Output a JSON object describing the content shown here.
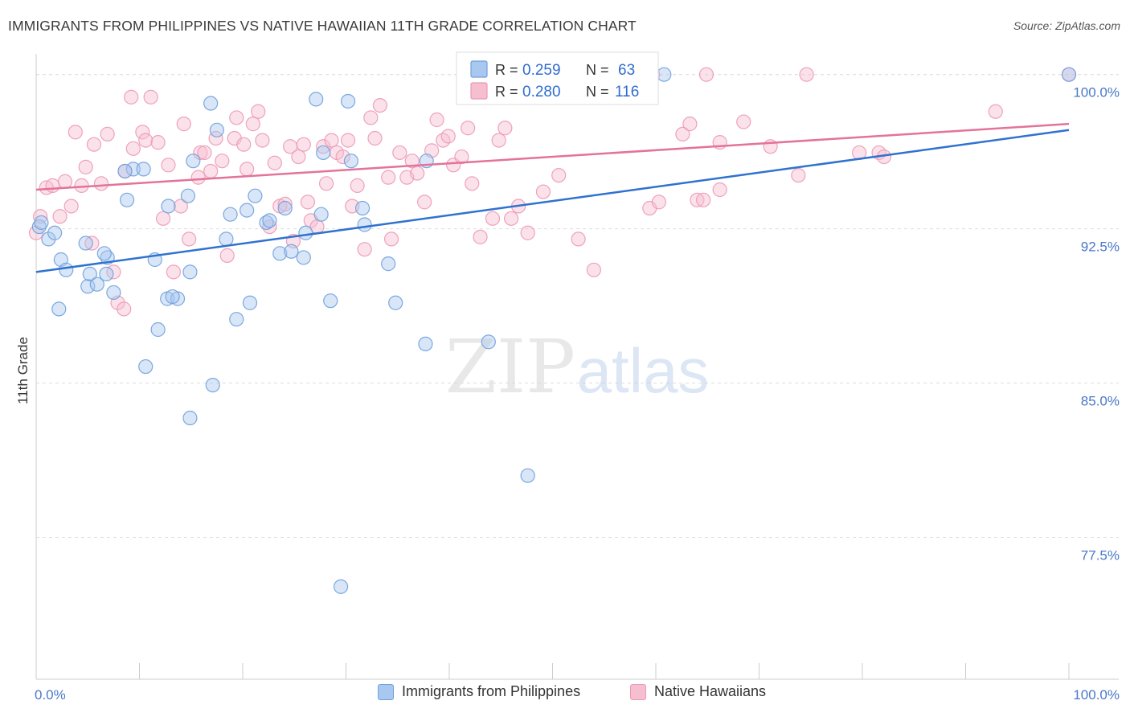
{
  "title": "IMMIGRANTS FROM PHILIPPINES VS NATIVE HAWAIIAN 11TH GRADE CORRELATION CHART",
  "source": "Source: ZipAtlas.com",
  "watermark": {
    "zip": "ZIP",
    "atlas": "atlas"
  },
  "colors": {
    "blue_fill": "#a9c8ef",
    "blue_stroke": "#6fa0dd",
    "blue_line": "#2f72cf",
    "pink_fill": "#f6bfd0",
    "pink_stroke": "#ec99b5",
    "pink_line": "#e3739a",
    "tick_label": "#4a78c8",
    "grid": "#dddddd"
  },
  "legend_top": {
    "rows": [
      {
        "r_label": "R =",
        "r_value": "0.259",
        "n_label": "N =",
        "n_value": "63",
        "color": "blue"
      },
      {
        "r_label": "R =",
        "r_value": "0.280",
        "n_label": "N =",
        "n_value": "116",
        "color": "pink"
      }
    ]
  },
  "legend_bottom": {
    "items": [
      {
        "label": "Immigrants from Philippines",
        "color": "blue"
      },
      {
        "label": "Native Hawaiians",
        "color": "pink"
      }
    ]
  },
  "chart_data": {
    "type": "scatter",
    "title": "IMMIGRANTS FROM PHILIPPINES VS NATIVE HAWAIIAN 11TH GRADE CORRELATION CHART",
    "xlabel": "",
    "ylabel": "11th Grade",
    "xlim": [
      0,
      100
    ],
    "ylim": [
      70.6,
      101.2
    ],
    "x_tick_labels": [
      {
        "value": 0,
        "label": "0.0%"
      },
      {
        "value": 100,
        "label": "100.0%"
      }
    ],
    "y_tick_labels": [
      {
        "value": 77.5,
        "label": "77.5%"
      },
      {
        "value": 85.0,
        "label": "85.0%"
      },
      {
        "value": 92.5,
        "label": "92.5%"
      },
      {
        "value": 100.0,
        "label": "100.0%"
      }
    ],
    "grid": true,
    "legend_position": "top-center",
    "series": [
      {
        "name": "Immigrants from Philippines",
        "color": "blue",
        "trend": {
          "x": [
            0,
            100
          ],
          "y": [
            90.4,
            97.3
          ]
        },
        "points": [
          [
            0.3,
            92.6
          ],
          [
            0.5,
            92.8
          ],
          [
            1.2,
            92.0
          ],
          [
            1.8,
            92.3
          ],
          [
            2.4,
            91.0
          ],
          [
            2.9,
            90.5
          ],
          [
            2.2,
            88.6
          ],
          [
            4.8,
            91.8
          ],
          [
            5.0,
            89.7
          ],
          [
            5.2,
            90.3
          ],
          [
            5.9,
            89.8
          ],
          [
            6.8,
            90.3
          ],
          [
            7.5,
            89.4
          ],
          [
            6.9,
            91.1
          ],
          [
            6.6,
            91.3
          ],
          [
            8.8,
            93.9
          ],
          [
            9.4,
            95.4
          ],
          [
            8.6,
            95.3
          ],
          [
            10.4,
            95.4
          ],
          [
            10.6,
            85.8
          ],
          [
            11.5,
            91.0
          ],
          [
            12.7,
            89.1
          ],
          [
            13.7,
            89.1
          ],
          [
            13.2,
            89.2
          ],
          [
            14.9,
            90.4
          ],
          [
            11.8,
            87.6
          ],
          [
            12.8,
            93.6
          ],
          [
            14.7,
            94.1
          ],
          [
            15.2,
            95.8
          ],
          [
            16.9,
            98.6
          ],
          [
            17.5,
            97.3
          ],
          [
            18.4,
            92.0
          ],
          [
            18.8,
            93.2
          ],
          [
            19.4,
            88.1
          ],
          [
            20.4,
            93.4
          ],
          [
            20.7,
            88.9
          ],
          [
            21.2,
            94.1
          ],
          [
            22.3,
            92.8
          ],
          [
            22.6,
            92.9
          ],
          [
            23.6,
            91.3
          ],
          [
            24.1,
            93.5
          ],
          [
            24.7,
            91.4
          ],
          [
            25.9,
            91.1
          ],
          [
            26.1,
            92.3
          ],
          [
            27.1,
            98.8
          ],
          [
            27.6,
            93.2
          ],
          [
            27.8,
            96.2
          ],
          [
            28.5,
            89.0
          ],
          [
            30.2,
            98.7
          ],
          [
            30.5,
            95.8
          ],
          [
            31.6,
            93.5
          ],
          [
            31.8,
            92.7
          ],
          [
            34.1,
            90.8
          ],
          [
            34.8,
            88.9
          ],
          [
            37.8,
            95.8
          ],
          [
            37.7,
            86.9
          ],
          [
            43.8,
            87.0
          ],
          [
            17.1,
            84.9
          ],
          [
            14.9,
            83.3
          ],
          [
            47.6,
            80.5
          ],
          [
            29.5,
            75.1
          ],
          [
            60.8,
            100.0
          ],
          [
            100.0,
            100.0
          ]
        ]
      },
      {
        "name": "Native Hawaiians",
        "color": "pink",
        "trend": {
          "x": [
            0,
            100
          ],
          "y": [
            94.4,
            97.6
          ]
        },
        "points": [
          [
            0.0,
            92.3
          ],
          [
            0.4,
            93.1
          ],
          [
            1.0,
            94.5
          ],
          [
            1.6,
            94.6
          ],
          [
            2.3,
            93.1
          ],
          [
            2.8,
            94.8
          ],
          [
            3.4,
            93.6
          ],
          [
            3.8,
            97.2
          ],
          [
            4.4,
            94.6
          ],
          [
            4.8,
            95.5
          ],
          [
            5.4,
            91.8
          ],
          [
            5.6,
            96.6
          ],
          [
            6.3,
            94.7
          ],
          [
            6.9,
            97.1
          ],
          [
            7.5,
            90.4
          ],
          [
            7.9,
            88.9
          ],
          [
            8.5,
            88.6
          ],
          [
            8.6,
            95.3
          ],
          [
            9.2,
            98.9
          ],
          [
            9.4,
            96.4
          ],
          [
            10.3,
            97.2
          ],
          [
            10.6,
            96.8
          ],
          [
            11.1,
            98.9
          ],
          [
            11.8,
            96.7
          ],
          [
            12.3,
            93.0
          ],
          [
            12.8,
            95.6
          ],
          [
            13.3,
            90.4
          ],
          [
            14.0,
            93.6
          ],
          [
            14.3,
            97.6
          ],
          [
            14.8,
            92.0
          ],
          [
            15.7,
            95.0
          ],
          [
            15.9,
            96.2
          ],
          [
            16.3,
            96.2
          ],
          [
            16.9,
            95.3
          ],
          [
            17.4,
            96.9
          ],
          [
            18.0,
            95.8
          ],
          [
            18.5,
            91.2
          ],
          [
            19.2,
            96.9
          ],
          [
            19.4,
            97.9
          ],
          [
            20.1,
            96.6
          ],
          [
            20.4,
            95.4
          ],
          [
            21.0,
            97.6
          ],
          [
            21.5,
            98.2
          ],
          [
            21.9,
            96.8
          ],
          [
            22.6,
            92.6
          ],
          [
            23.1,
            95.7
          ],
          [
            23.6,
            93.6
          ],
          [
            24.1,
            93.7
          ],
          [
            24.6,
            96.5
          ],
          [
            24.9,
            91.9
          ],
          [
            25.4,
            96.0
          ],
          [
            25.9,
            96.6
          ],
          [
            26.3,
            93.8
          ],
          [
            26.6,
            92.9
          ],
          [
            27.2,
            92.6
          ],
          [
            27.8,
            96.5
          ],
          [
            28.1,
            94.7
          ],
          [
            28.6,
            96.8
          ],
          [
            29.1,
            96.2
          ],
          [
            29.7,
            96.0
          ],
          [
            30.2,
            96.8
          ],
          [
            30.6,
            93.6
          ],
          [
            31.1,
            94.6
          ],
          [
            31.8,
            91.5
          ],
          [
            32.4,
            97.9
          ],
          [
            32.8,
            96.9
          ],
          [
            33.3,
            98.5
          ],
          [
            34.1,
            95.0
          ],
          [
            34.4,
            92.0
          ],
          [
            35.2,
            96.2
          ],
          [
            35.9,
            95.0
          ],
          [
            36.4,
            95.8
          ],
          [
            36.9,
            95.2
          ],
          [
            37.6,
            93.8
          ],
          [
            38.3,
            96.3
          ],
          [
            38.8,
            97.8
          ],
          [
            39.4,
            96.8
          ],
          [
            39.9,
            97.0
          ],
          [
            40.4,
            95.6
          ],
          [
            41.2,
            96.0
          ],
          [
            41.8,
            97.4
          ],
          [
            42.2,
            94.7
          ],
          [
            43.0,
            92.1
          ],
          [
            44.2,
            93.0
          ],
          [
            44.8,
            96.8
          ],
          [
            45.4,
            97.4
          ],
          [
            46.0,
            93.0
          ],
          [
            46.7,
            93.6
          ],
          [
            47.6,
            92.3
          ],
          [
            49.1,
            94.3
          ],
          [
            50.6,
            95.1
          ],
          [
            52.5,
            92.0
          ],
          [
            54.0,
            90.5
          ],
          [
            59.3,
            100.0
          ],
          [
            59.7,
            100.0
          ],
          [
            59.4,
            93.5
          ],
          [
            60.3,
            93.8
          ],
          [
            62.6,
            97.1
          ],
          [
            63.3,
            97.6
          ],
          [
            64.0,
            93.9
          ],
          [
            64.6,
            93.9
          ],
          [
            66.2,
            94.4
          ],
          [
            66.2,
            96.7
          ],
          [
            68.5,
            97.7
          ],
          [
            71.1,
            96.5
          ],
          [
            73.8,
            95.1
          ],
          [
            79.7,
            96.2
          ],
          [
            81.6,
            96.2
          ],
          [
            82.1,
            96.0
          ],
          [
            92.9,
            98.2
          ],
          [
            74.6,
            100.0
          ],
          [
            64.9,
            100.0
          ],
          [
            45.6,
            100.0
          ],
          [
            44.7,
            100.0
          ],
          [
            43.9,
            100.0
          ],
          [
            100.0,
            100.0
          ]
        ]
      }
    ]
  }
}
